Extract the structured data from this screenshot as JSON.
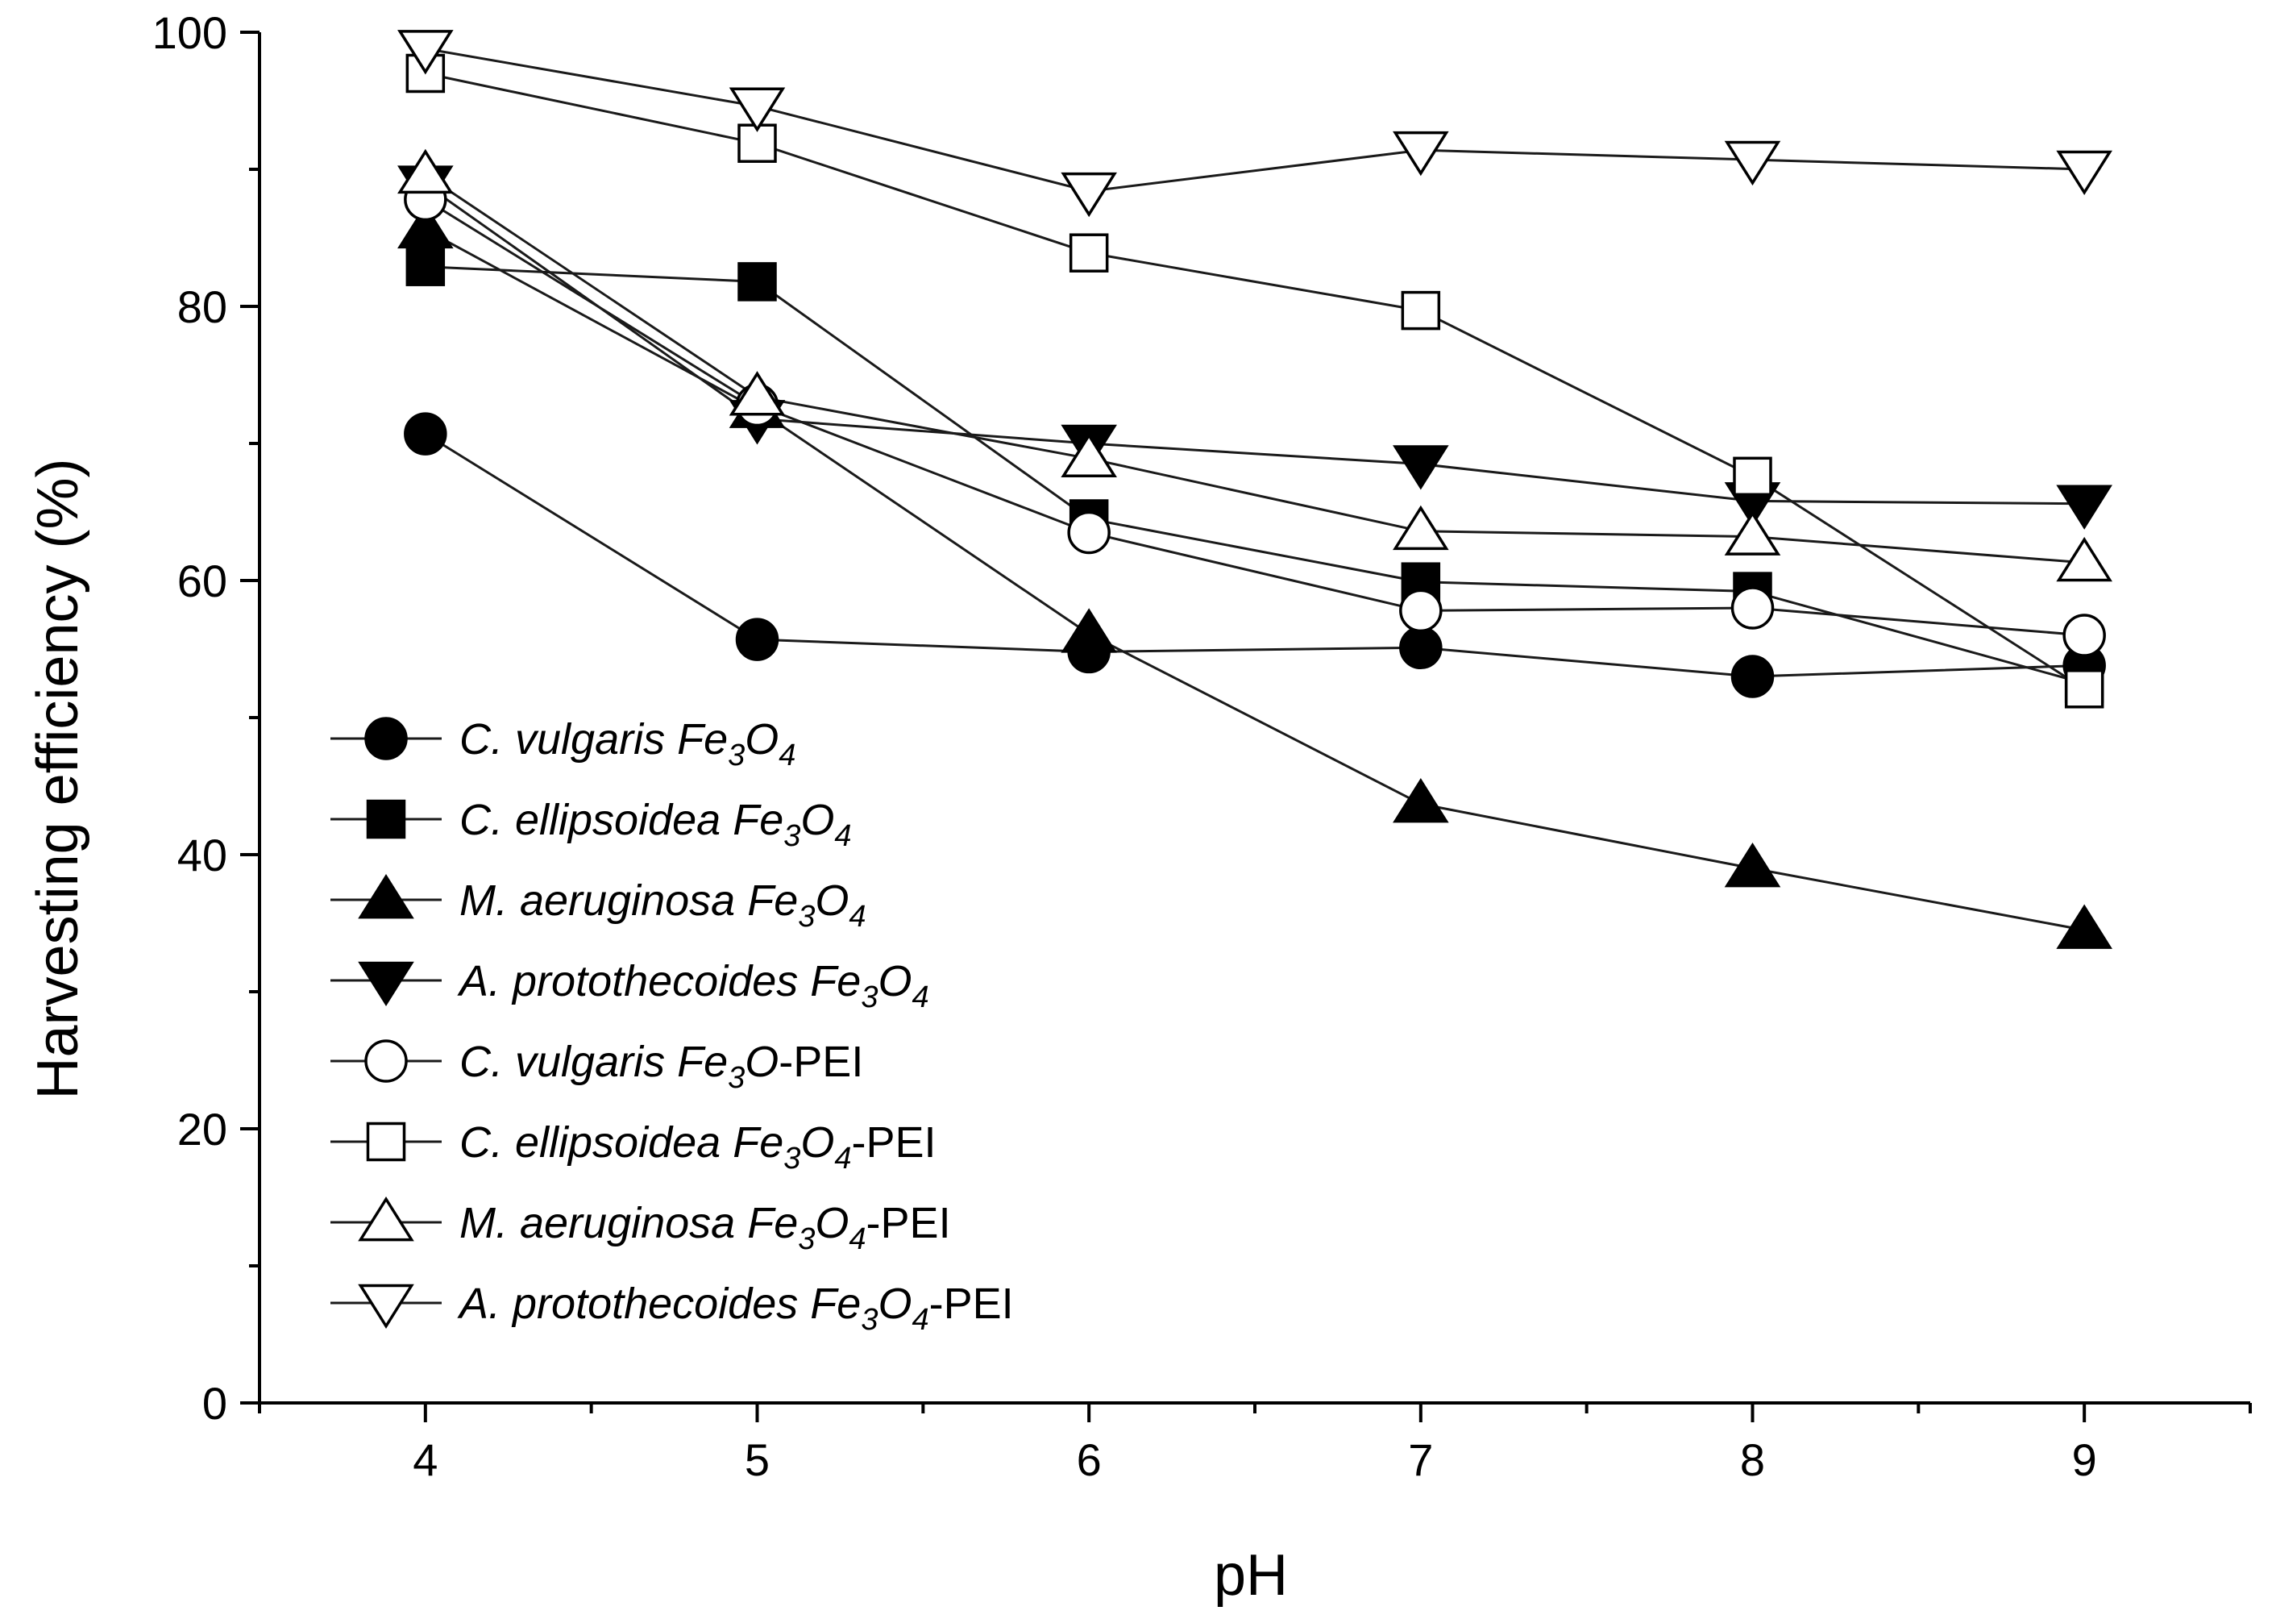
{
  "chart_data": {
    "type": "line",
    "title": "",
    "xlabel": "pH",
    "ylabel": "Harvesting efficiency (%)",
    "xlim": [
      3.5,
      9.5
    ],
    "ylim": [
      0,
      100
    ],
    "x": [
      4,
      5,
      6,
      7,
      8,
      9
    ],
    "xticks": [
      "4",
      "5",
      "6",
      "7",
      "8",
      "9"
    ],
    "yticks": [
      "0",
      "20",
      "40",
      "60",
      "80",
      "100"
    ],
    "legend_position": "bottom-left",
    "series": [
      {
        "name": "C. vulgaris Fe3O4",
        "species": "C. vulgaris",
        "material": "Fe3O4",
        "marker": "circle",
        "filled": true,
        "values": [
          70.7,
          55.7,
          54.8,
          55.1,
          53.0,
          53.8
        ]
      },
      {
        "name": "C. ellipsoidea Fe3O4",
        "species": "C. ellipsoidea",
        "material": "Fe3O4",
        "marker": "square",
        "filled": true,
        "values": [
          82.9,
          81.8,
          64.5,
          59.9,
          59.2,
          52.5
        ]
      },
      {
        "name": "M. aeruginosa Fe3O4",
        "species": "M. aeruginosa",
        "material": "Fe3O4",
        "marker": "triangle-up",
        "filled": true,
        "values": [
          85.6,
          72.5,
          56.1,
          43.7,
          39.0,
          34.5
        ]
      },
      {
        "name": "A. protothecoides Fe3O4",
        "species": "A. protothecoides",
        "material": "Fe3O4",
        "marker": "triangle-down",
        "filled": true,
        "values": [
          88.9,
          71.8,
          70.0,
          68.5,
          65.8,
          65.6
        ]
      },
      {
        "name": "C. vulgaris Fe3O-PEI",
        "species": "C. vulgaris",
        "material": "Fe3O-PEI",
        "marker": "circle",
        "filled": false,
        "values": [
          87.8,
          72.8,
          63.5,
          57.8,
          58.0,
          56.0
        ]
      },
      {
        "name": "C. ellipsoidea Fe3O4-PEI",
        "species": "C. ellipsoidea",
        "material": "Fe3O4-PEI",
        "marker": "square",
        "filled": false,
        "values": [
          97.0,
          91.9,
          83.9,
          79.7,
          67.6,
          52.1
        ]
      },
      {
        "name": "M. aeruginosa Fe3O4-PEI",
        "species": "M. aeruginosa",
        "material": "Fe3O4-PEI",
        "marker": "triangle-up",
        "filled": false,
        "values": [
          89.6,
          73.4,
          68.9,
          63.6,
          63.2,
          61.3
        ]
      },
      {
        "name": "A. protothecoides Fe3O4-PEI",
        "species": "A. protothecoides",
        "material": "Fe3O4-PEI",
        "marker": "triangle-down",
        "filled": false,
        "values": [
          98.8,
          94.6,
          88.4,
          91.4,
          90.7,
          90.0
        ]
      }
    ]
  }
}
